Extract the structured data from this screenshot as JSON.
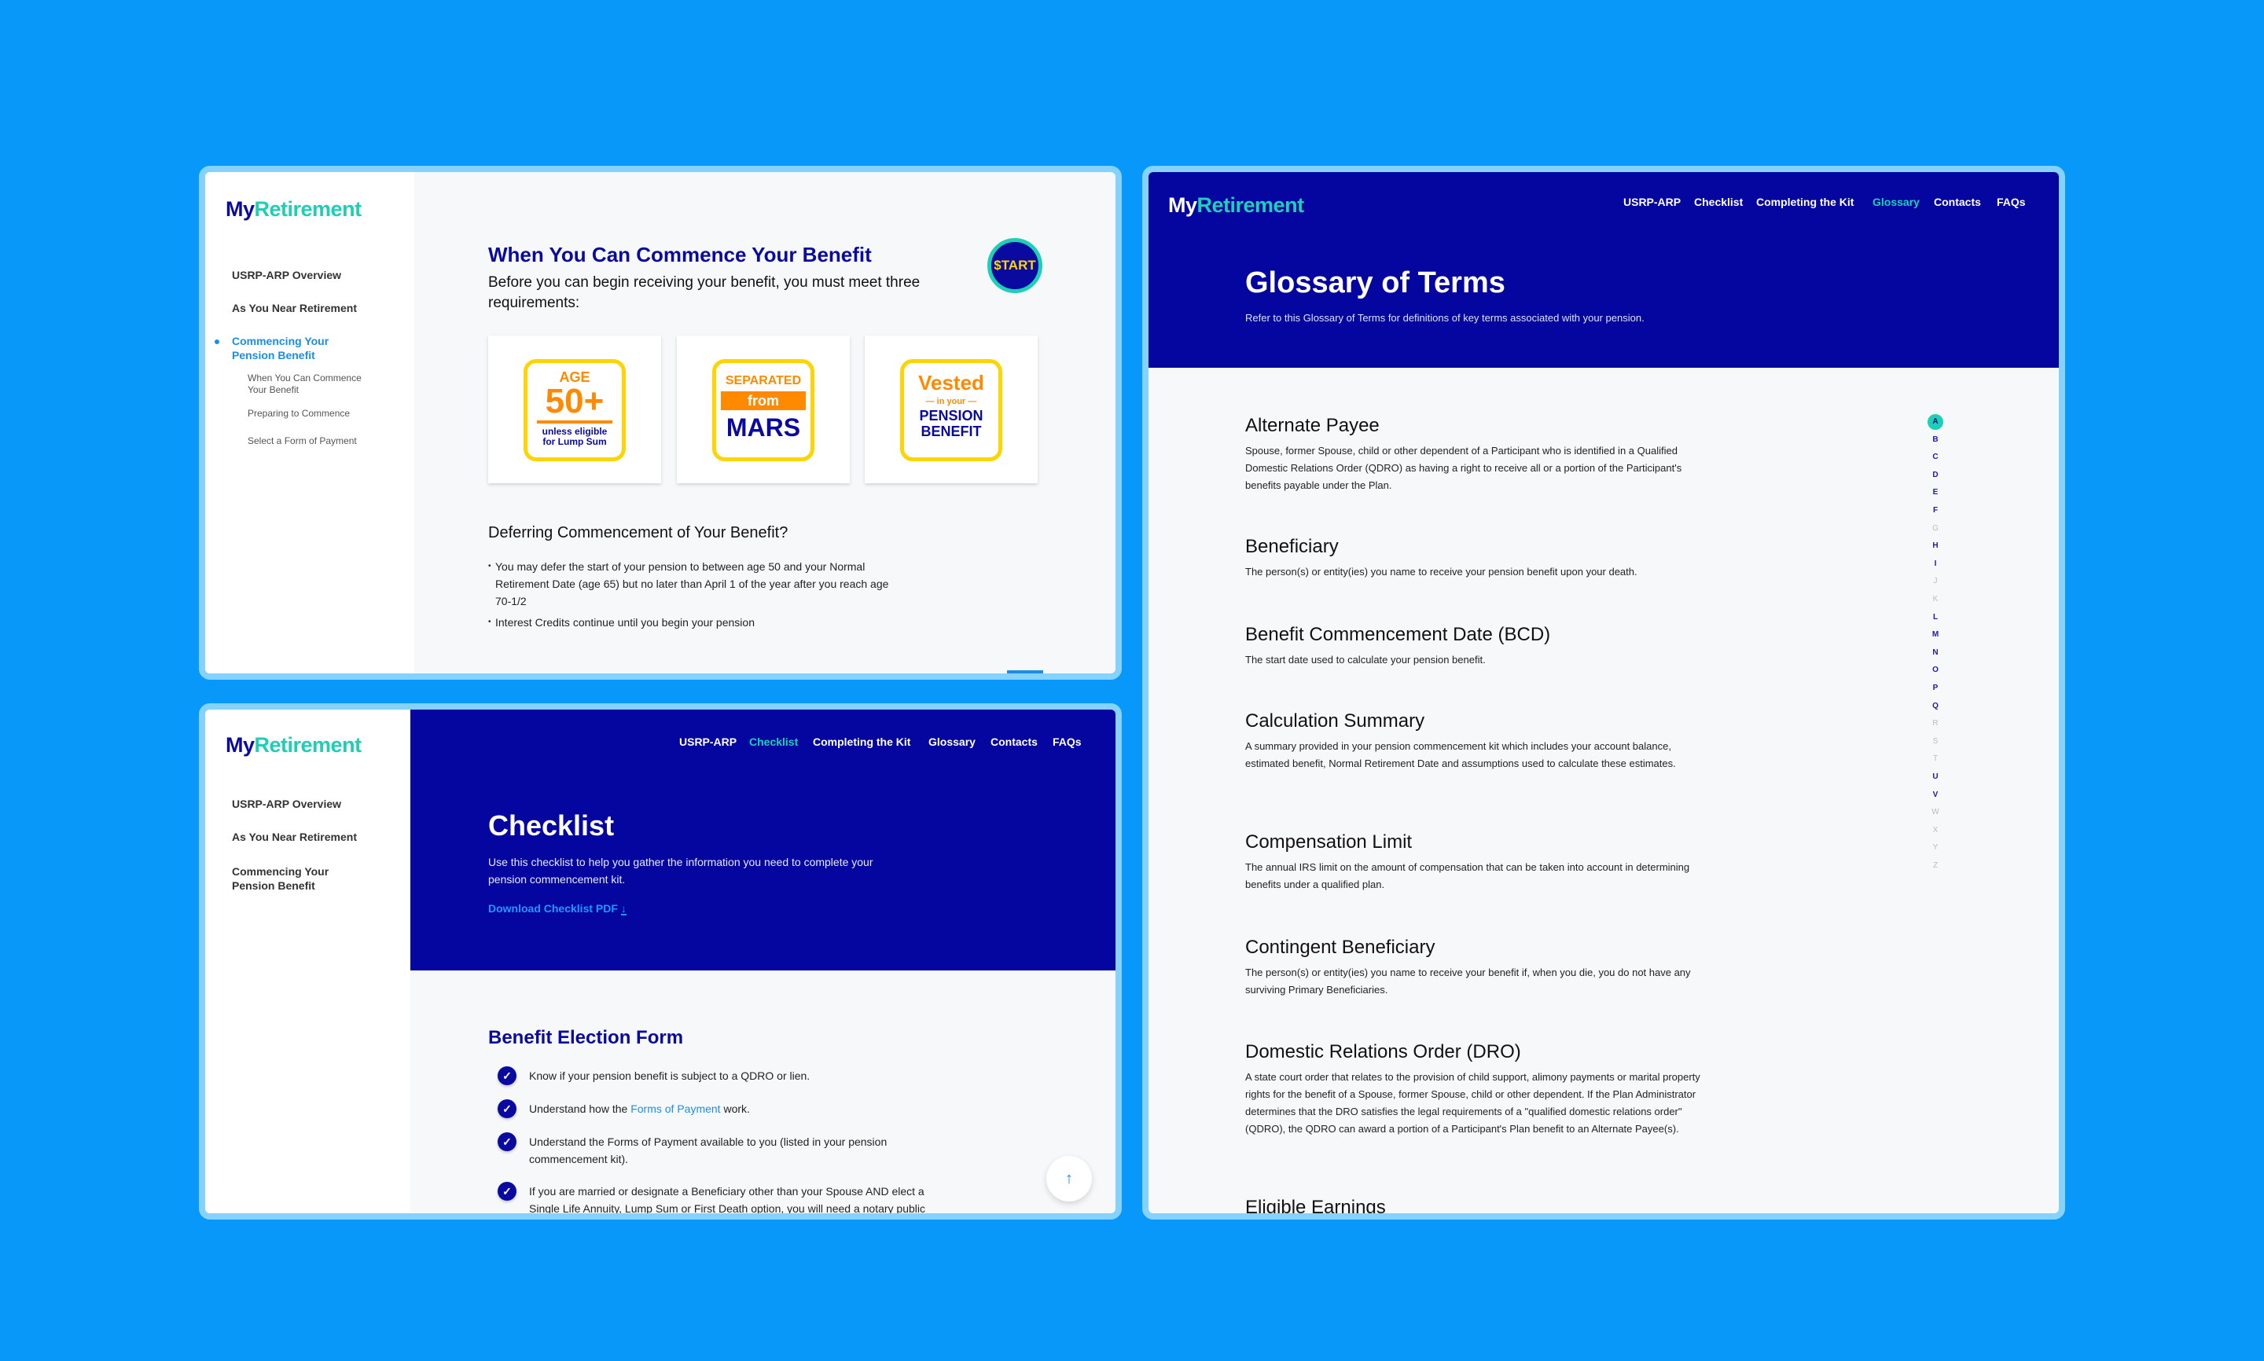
{
  "colors": {
    "background": "#0898fa",
    "navy": "#0505a0",
    "teal": "#1ccfb5",
    "link_blue": "#1a8ee6",
    "badge_yellow": "#ffd400",
    "badge_orange": "#ff8a00"
  },
  "brand": {
    "my": "My",
    "retirement": "Retirement"
  },
  "nav": [
    "USRP-ARP",
    "Checklist",
    "Completing the Kit",
    "Glossary",
    "Contacts",
    "FAQs"
  ],
  "sidebar": {
    "items": [
      {
        "label": "USRP-ARP Overview"
      },
      {
        "label": "As You Near Retirement"
      },
      {
        "label": "Commencing Your Pension Benefit"
      }
    ],
    "subitems": [
      "When You Can Commence Your Benefit",
      "Preparing to Commence",
      "Select a Form of Payment"
    ]
  },
  "commence": {
    "title": "When You Can Commence Your Benefit",
    "intro": "Before you can begin receiving your benefit, you must meet three requirements:",
    "start_badge": "$TART",
    "badges": {
      "age": {
        "top": "AGE",
        "big": "50+",
        "bottom": "unless eligible for Lump Sum"
      },
      "separated": {
        "top": "SEPARATED",
        "mid": "from",
        "big": "MARS"
      },
      "vested": {
        "top": "Vested",
        "mid": "in your",
        "big": "PENSION BENEFIT"
      }
    },
    "defer_heading": "Deferring Commencement of Your Benefit?",
    "bullets": [
      "You may defer the start of your pension to between age 50 and your Normal Retirement Date (age 65) but no later than April 1 of the year after you reach age 70-1/2",
      "Interest Credits continue until you begin your pension"
    ]
  },
  "checklist": {
    "active_nav": "Checklist",
    "title": "Checklist",
    "description": "Use this checklist to help you gather the information you need to complete your pension commencement kit.",
    "download_label": "Download Checklist PDF",
    "section_title": "Benefit Election Form",
    "items": [
      {
        "before": "Know if your pension benefit is subject to a QDRO or lien.",
        "link": "",
        "after": ""
      },
      {
        "before": "Understand how the ",
        "link": "Forms of Payment",
        "after": " work."
      },
      {
        "before": "Understand the Forms of Payment available to you (listed in your pension commencement kit).",
        "link": "",
        "after": ""
      },
      {
        "before": "If you are married or designate a Beneficiary other than your Spouse AND elect a Single Life Annuity, Lump Sum or First Death option, you will need a notary public",
        "link": "",
        "after": ""
      }
    ],
    "scroll_top_icon": "arrow-up-icon"
  },
  "glossary": {
    "active_nav": "Glossary",
    "title": "Glossary of Terms",
    "subtitle": "Refer to this Glossary of Terms for definitions of key terms associated with your pension.",
    "terms": [
      {
        "title": "Alternate Payee",
        "body": "Spouse, former Spouse, child or other dependent of a Participant who is identified in a Qualified Domestic Relations Order (QDRO) as having a right to receive all or a portion of the Participant's benefits payable under the Plan."
      },
      {
        "title": "Beneficiary",
        "body": "The person(s) or entity(ies) you name to receive your pension benefit upon your death."
      },
      {
        "title": "Benefit Commencement Date (BCD)",
        "body": "The start date used to calculate your pension benefit."
      },
      {
        "title": "Calculation Summary",
        "body": "A summary provided in your pension commencement kit which includes your account balance, estimated benefit, Normal Retirement Date and assumptions used to calculate these estimates."
      },
      {
        "title": "Compensation Limit",
        "body": "The annual IRS limit on the amount of compensation that can be taken into account in determining benefits under a qualified plan."
      },
      {
        "title": "Contingent Beneficiary",
        "body": "The person(s) or entity(ies) you name to receive your benefit if, when you die, you do not have any surviving Primary Beneficiaries."
      },
      {
        "title": "Domestic Relations Order (DRO)",
        "body": "A state court order that relates to the provision of child support, alimony payments or marital property rights for the benefit of a Spouse, former Spouse, child or other dependent. If the Plan Administrator determines that the DRO satisfies the legal requirements of a \"qualified domestic relations order\" (QDRO), the QDRO can award a portion of a Participant's Plan benefit to an Alternate Payee(s)."
      },
      {
        "title": "Eligible Earnings",
        "body": ""
      }
    ],
    "active_letter": "A",
    "letters": [
      {
        "l": "A",
        "on": true
      },
      {
        "l": "B",
        "on": true
      },
      {
        "l": "C",
        "on": true
      },
      {
        "l": "D",
        "on": true
      },
      {
        "l": "E",
        "on": true
      },
      {
        "l": "F",
        "on": true
      },
      {
        "l": "G",
        "on": false
      },
      {
        "l": "H",
        "on": true
      },
      {
        "l": "I",
        "on": true
      },
      {
        "l": "J",
        "on": false
      },
      {
        "l": "K",
        "on": false
      },
      {
        "l": "L",
        "on": true
      },
      {
        "l": "M",
        "on": true
      },
      {
        "l": "N",
        "on": true
      },
      {
        "l": "O",
        "on": true
      },
      {
        "l": "P",
        "on": true
      },
      {
        "l": "Q",
        "on": true
      },
      {
        "l": "R",
        "on": false
      },
      {
        "l": "S",
        "on": false
      },
      {
        "l": "T",
        "on": false
      },
      {
        "l": "U",
        "on": true
      },
      {
        "l": "V",
        "on": true
      },
      {
        "l": "W",
        "on": false
      },
      {
        "l": "X",
        "on": false
      },
      {
        "l": "Y",
        "on": false
      },
      {
        "l": "Z",
        "on": false
      }
    ]
  }
}
